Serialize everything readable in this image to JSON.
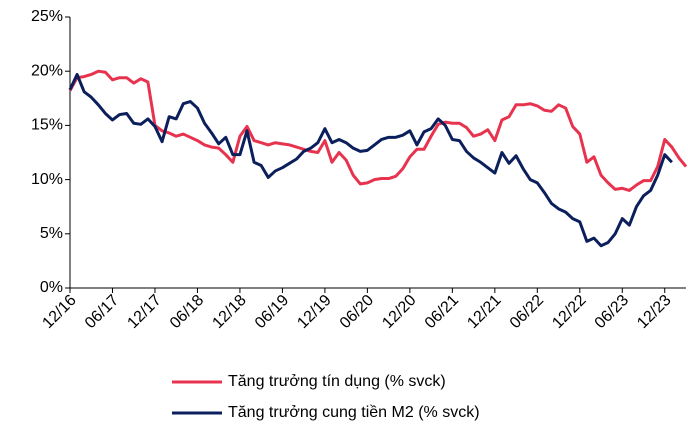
{
  "chart_data": {
    "type": "line",
    "categories": [
      "12/16",
      null,
      null,
      null,
      null,
      null,
      "06/17",
      null,
      null,
      null,
      null,
      null,
      "12/17",
      null,
      null,
      null,
      null,
      null,
      "06/18",
      null,
      null,
      null,
      null,
      null,
      "12/18",
      null,
      null,
      null,
      null,
      null,
      "06/19",
      null,
      null,
      null,
      null,
      null,
      "12/19",
      null,
      null,
      null,
      null,
      null,
      "06/20",
      null,
      null,
      null,
      null,
      null,
      "12/20",
      null,
      null,
      null,
      null,
      null,
      "06/21",
      null,
      null,
      null,
      null,
      null,
      "12/21",
      null,
      null,
      null,
      null,
      null,
      "06/22",
      null,
      null,
      null,
      null,
      null,
      "12/22",
      null,
      null,
      null,
      null,
      null,
      "06/23",
      null,
      null,
      null,
      null,
      null,
      "12/23",
      null,
      null,
      null
    ],
    "series": [
      {
        "name": "Tăng trưởng tín dụng (% svck)",
        "color": "#e8334f",
        "values": [
          18.2,
          19.4,
          19.5,
          19.7,
          20.0,
          19.9,
          19.2,
          19.4,
          19.4,
          18.9,
          19.3,
          19.0,
          15.0,
          14.5,
          14.3,
          14.0,
          14.2,
          13.9,
          13.6,
          13.2,
          13.0,
          12.9,
          12.3,
          11.6,
          14.0,
          14.9,
          13.6,
          13.4,
          13.2,
          13.4,
          13.3,
          13.2,
          13.0,
          12.8,
          12.6,
          12.5,
          13.6,
          11.6,
          12.5,
          11.8,
          10.4,
          9.6,
          9.7,
          10.0,
          10.1,
          10.1,
          10.3,
          11.0,
          12.1,
          12.8,
          12.8,
          14.0,
          15.1,
          15.3,
          15.2,
          15.2,
          14.8,
          14.0,
          14.2,
          14.6,
          13.6,
          15.5,
          15.8,
          16.9,
          16.9,
          17.0,
          16.8,
          16.4,
          16.3,
          16.9,
          16.6,
          14.9,
          14.2,
          11.6,
          12.1,
          10.4,
          9.7,
          9.1,
          9.2,
          9.0,
          9.5,
          9.9,
          9.9,
          11.2,
          13.7,
          13.0,
          12.0,
          11.2
        ]
      },
      {
        "name": "Tăng trưởng cung tiền M2 (% svck)",
        "color": "#0b1f5c",
        "values": [
          18.3,
          19.7,
          18.1,
          17.6,
          16.9,
          16.1,
          15.5,
          16.0,
          16.1,
          15.2,
          15.1,
          15.6,
          14.9,
          13.5,
          15.8,
          15.6,
          17.0,
          17.2,
          16.6,
          15.2,
          14.3,
          13.3,
          13.9,
          12.3,
          12.3,
          14.5,
          11.6,
          11.3,
          10.2,
          10.8,
          11.1,
          11.5,
          11.9,
          12.6,
          12.9,
          13.4,
          14.7,
          13.4,
          13.7,
          13.4,
          12.9,
          12.6,
          12.7,
          13.2,
          13.7,
          13.9,
          13.9,
          14.1,
          14.5,
          13.2,
          14.4,
          14.7,
          15.6,
          15.0,
          13.7,
          13.6,
          12.6,
          12.0,
          11.6,
          11.1,
          10.6,
          12.5,
          11.5,
          12.2,
          11.0,
          10.0,
          9.7,
          8.8,
          7.8,
          7.3,
          7.0,
          6.4,
          6.1,
          4.3,
          4.6,
          3.9,
          4.2,
          5.0,
          6.4,
          5.8,
          7.5,
          8.5,
          9.0,
          10.4,
          12.3,
          11.6,
          null,
          null
        ]
      }
    ],
    "ylim": [
      0,
      25
    ],
    "yticks": [
      {
        "value": 0,
        "label": "0%"
      },
      {
        "value": 5,
        "label": "5%"
      },
      {
        "value": 10,
        "label": "10%"
      },
      {
        "value": 15,
        "label": "15%"
      },
      {
        "value": 20,
        "label": "20%"
      },
      {
        "value": 25,
        "label": "25%"
      }
    ],
    "legend": "bottom"
  }
}
